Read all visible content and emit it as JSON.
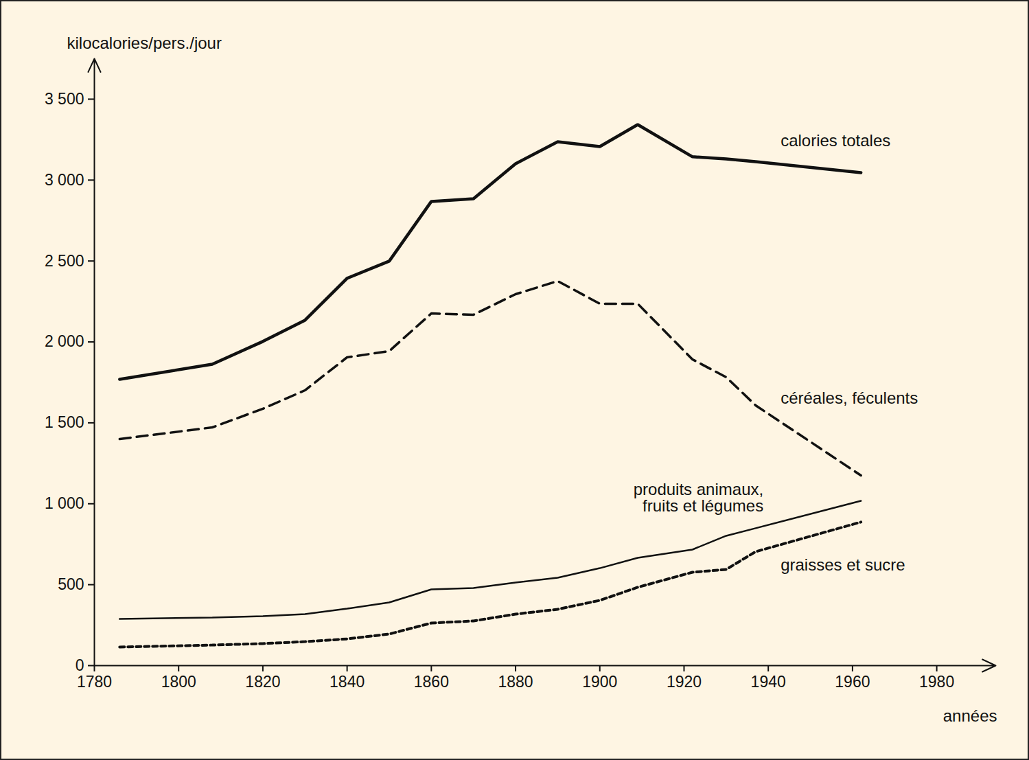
{
  "chart_data": {
    "type": "line",
    "x_label": "années",
    "y_label": "kilocalories/pers./jour",
    "x": [
      1786,
      1808,
      1820,
      1830,
      1840,
      1850,
      1860,
      1870,
      1880,
      1890,
      1900,
      1909,
      1922,
      1930,
      1937,
      1962
    ],
    "series": [
      {
        "name": "calories totales",
        "color": "#111111",
        "line_style": "solid",
        "values": [
          1769,
          1862,
          2003,
          2134,
          2393,
          2499,
          2868,
          2885,
          3101,
          3237,
          3207,
          3343,
          3144,
          3131,
          3114,
          3046
        ]
      },
      {
        "name": "céréales, féculents",
        "color": "#111111",
        "line_style": "dashed",
        "values": [
          1400,
          1472,
          1587,
          1701,
          1905,
          1943,
          2176,
          2168,
          2295,
          2376,
          2236,
          2236,
          1892,
          1782,
          1608,
          1175
        ]
      },
      {
        "name": "produits animaux,\nfruits et légumes",
        "color": "#111111",
        "line_style": "solid",
        "values": [
          288,
          297,
          305,
          318,
          352,
          390,
          471,
          479,
          513,
          543,
          602,
          666,
          717,
          802,
          849,
          1018
        ]
      },
      {
        "name": "graisses et sucre",
        "color": "#111111",
        "line_style": "dotted",
        "values": [
          115,
          127,
          136,
          148,
          165,
          195,
          263,
          276,
          318,
          348,
          403,
          484,
          577,
          594,
          704,
          887
        ]
      }
    ],
    "xlim": [
      1780,
      1994
    ],
    "ylim": [
      0,
      3750
    ],
    "xticks": [
      1780,
      1800,
      1820,
      1840,
      1860,
      1880,
      1900,
      1920,
      1940,
      1960,
      1980
    ],
    "yticks": [
      0,
      500,
      {
        "value": 1000,
        "label": "1 000"
      },
      {
        "value": 1500,
        "label": "1 500"
      },
      {
        "value": 2000,
        "label": "2 000"
      },
      {
        "value": 2500,
        "label": "2 500"
      },
      {
        "value": 3000,
        "label": "3 000"
      },
      {
        "value": 3500,
        "label": "3 500"
      }
    ],
    "grid": false
  }
}
